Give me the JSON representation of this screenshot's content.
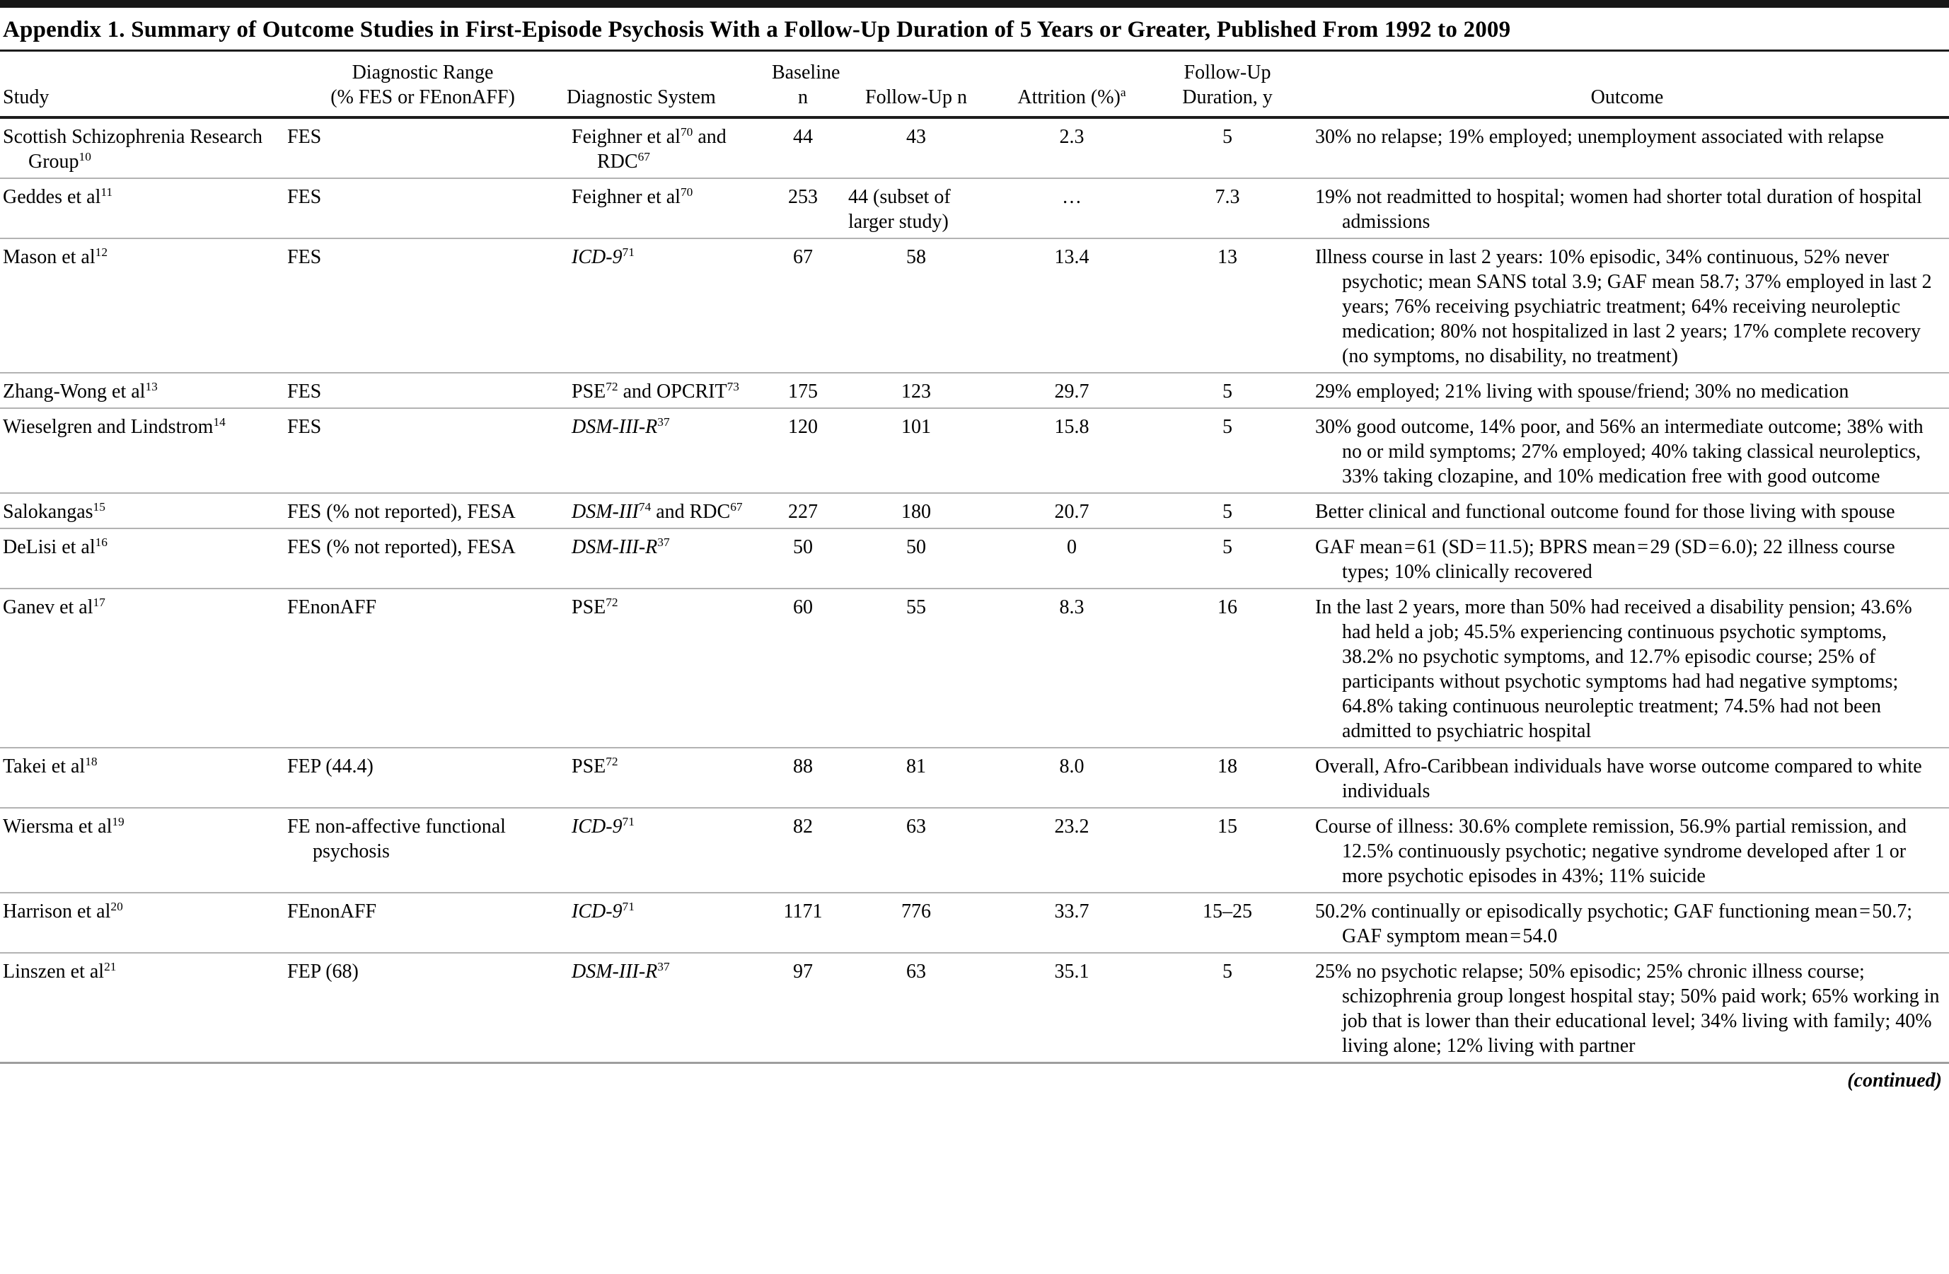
{
  "title": "Appendix 1. Summary of Outcome Studies in First-Episode Psychosis With a Follow-Up Duration of 5 Years or Greater, Published From 1992 to 2009",
  "continued_note": "(continued)",
  "table": {
    "headers": {
      "study": "Study",
      "range": [
        "Diagnostic Range",
        "(% FES or FEnonAFF)"
      ],
      "system": "Diagnostic System",
      "baseline": [
        "Baseline",
        "n"
      ],
      "followup_n": "Follow-Up n",
      "attrition": "Attrition (%)^a^",
      "duration": [
        "Follow-Up",
        "Duration, y"
      ],
      "outcome": "Outcome"
    },
    "rows": [
      {
        "study": "Scottish Schizophrenia Research Group^10^",
        "range": "FES",
        "system": "Feighner et al^70^ and RDC^67^",
        "baseline_n": "44",
        "followup_n": "43",
        "attrition": "2.3",
        "duration": "5",
        "outcome": "30% no relapse; 19% employed; unemployment associated with relapse"
      },
      {
        "study": "Geddes et al^11^",
        "range": "FES",
        "system": "Feighner et al^70^",
        "baseline_n": "253",
        "followup_n": "44 (subset of larger study)",
        "attrition": "…",
        "duration": "7.3",
        "outcome": "19% not readmitted to hospital; women had shorter total duration of hospital admissions"
      },
      {
        "study": "Mason et al^12^",
        "range": "FES",
        "system": "*ICD-9*^71^",
        "baseline_n": "67",
        "followup_n": "58",
        "attrition": "13.4",
        "duration": "13",
        "outcome": "Illness course in last 2 years: 10% episodic, 34% continuous, 52% never psychotic; mean SANS total 3.9; GAF mean 58.7; 37% employed in last 2 years; 76% receiving psychiatric treatment; 64% receiving neuroleptic medication; 80% not hospitalized in last 2 years; 17% complete recovery (no symptoms, no disability, no treatment)"
      },
      {
        "study": "Zhang-Wong et al^13^",
        "range": "FES",
        "system": "PSE^72^ and OPCRIT^73^",
        "baseline_n": "175",
        "followup_n": "123",
        "attrition": "29.7",
        "duration": "5",
        "outcome": "29% employed; 21% living with spouse/friend; 30% no medication"
      },
      {
        "study": "Wieselgren and Lindstrom^14^",
        "range": "FES",
        "system": "*DSM-III-R*^37^",
        "baseline_n": "120",
        "followup_n": "101",
        "attrition": "15.8",
        "duration": "5",
        "outcome": "30% good outcome, 14% poor, and 56% an intermediate outcome; 38% with no or mild symptoms; 27% employed; 40% taking classical neuroleptics, 33% taking clozapine, and 10% medication free with good outcome"
      },
      {
        "study": "Salokangas^15^",
        "range": "FES (% not reported), FESA",
        "system": "*DSM-III*^74^ and RDC^67^",
        "baseline_n": "227",
        "followup_n": "180",
        "attrition": "20.7",
        "duration": "5",
        "outcome": "Better clinical and functional outcome found for those living with spouse"
      },
      {
        "study": "DeLisi et al^16^",
        "range": "FES (% not reported), FESA",
        "system": "*DSM-III-R*^37^",
        "baseline_n": "50",
        "followup_n": "50",
        "attrition": "0",
        "duration": "5",
        "outcome": "GAF mean = 61 (SD = 11.5); BPRS mean = 29 (SD = 6.0); 22 illness course types; 10% clinically recovered"
      },
      {
        "study": "Ganev et al^17^",
        "range": "FEnonAFF",
        "system": "PSE^72^",
        "baseline_n": "60",
        "followup_n": "55",
        "attrition": "8.3",
        "duration": "16",
        "outcome": "In the last 2 years, more than 50% had received a disability pension; 43.6% had held a job; 45.5% experiencing continuous psychotic symptoms, 38.2% no psychotic symptoms, and 12.7% episodic course; 25% of participants without psychotic symptoms had had negative symptoms; 64.8% taking continuous neuroleptic treatment; 74.5% had not been admitted to psychiatric hospital"
      },
      {
        "study": "Takei et al^18^",
        "range": "FEP (44.4)",
        "system": "PSE^72^",
        "baseline_n": "88",
        "followup_n": "81",
        "attrition": "8.0",
        "duration": "18",
        "outcome": "Overall, Afro-Caribbean individuals have worse outcome compared to white individuals"
      },
      {
        "study": "Wiersma et al^19^",
        "range": "FE non-affective functional psychosis",
        "system": "*ICD-9*^71^",
        "baseline_n": "82",
        "followup_n": "63",
        "attrition": "23.2",
        "duration": "15",
        "outcome": "Course of illness: 30.6% complete remission, 56.9% partial remission, and 12.5% continuously psychotic; negative syndrome developed after 1 or more psychotic episodes in 43%; 11% suicide"
      },
      {
        "study": "Harrison et al^20^",
        "range": "FEnonAFF",
        "system": "*ICD-9*^71^",
        "baseline_n": "1171",
        "followup_n": "776",
        "attrition": "33.7",
        "duration": "15–25",
        "outcome": "50.2% continually or episodically psychotic; GAF functioning mean = 50.7; GAF symptom mean = 54.0"
      },
      {
        "study": "Linszen et al^21^",
        "range": "FEP (68)",
        "system": "*DSM-III-R*^37^",
        "baseline_n": "97",
        "followup_n": "63",
        "attrition": "35.1",
        "duration": "5",
        "outcome": "25% no psychotic relapse; 50% episodic; 25% chronic illness course; schizophrenia group longest hospital stay; 50% paid work; 65% working in job that is lower than their educational level; 34% living with family; 40% living alone; 12% living with partner"
      }
    ]
  }
}
